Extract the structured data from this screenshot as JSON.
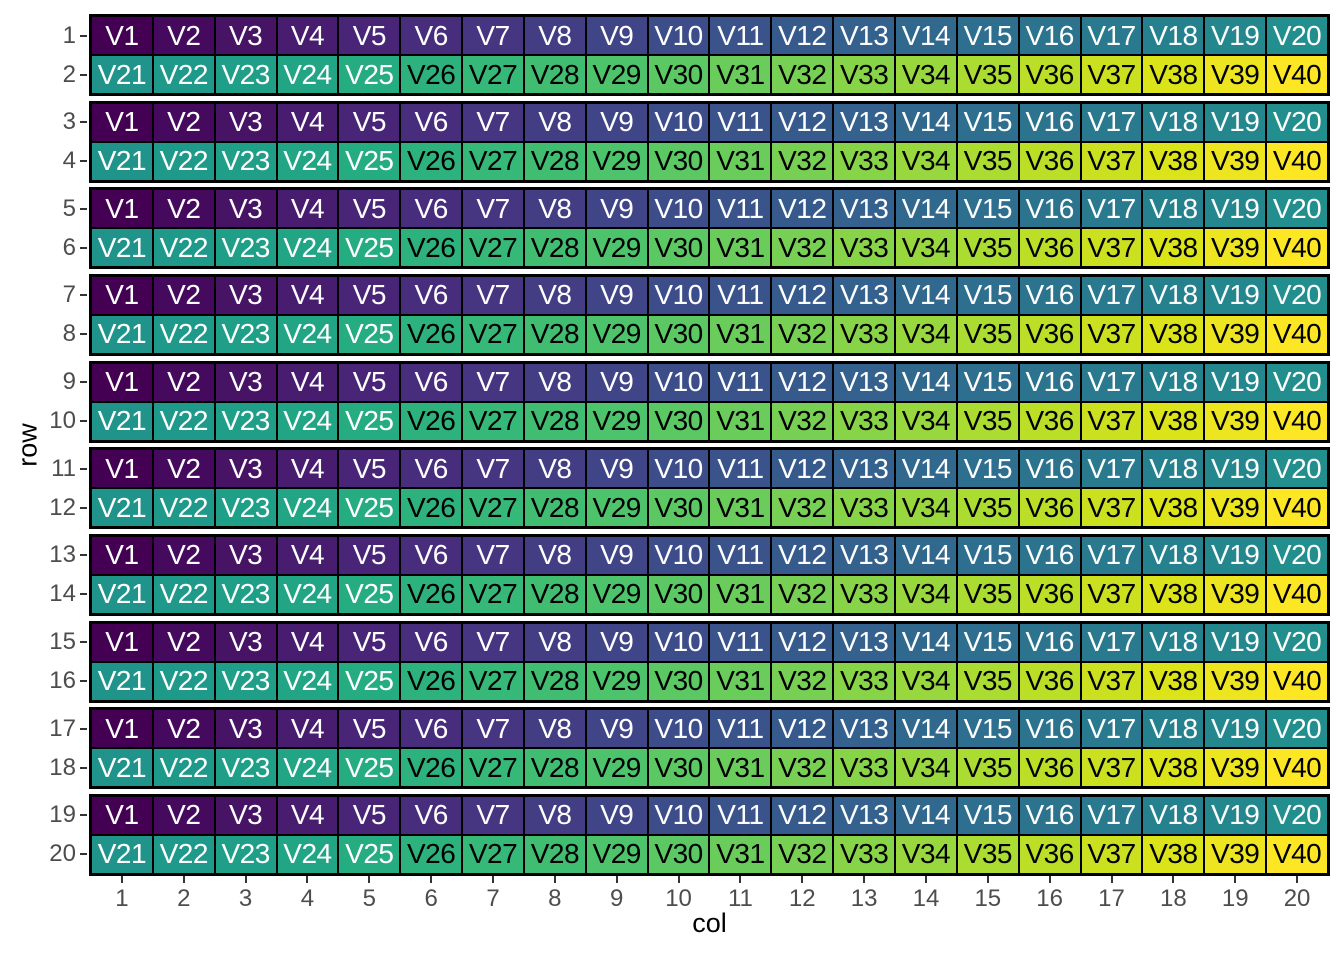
{
  "figure": {
    "background": "#FFFFFF",
    "colors": {
      "band_border": "#000000",
      "cell_border": "#000000",
      "tick_mark": "#333333",
      "tick_label": "#4D4D4D",
      "axis_title": "#000000",
      "light_text": "#FFFFFF",
      "dark_text": "#000000"
    }
  },
  "chart_data": {
    "type": "heatmap",
    "title": "",
    "xlabel": "col",
    "ylabel": "row",
    "n_rows": 20,
    "n_cols": 20,
    "x_ticks": [
      "1",
      "2",
      "3",
      "4",
      "5",
      "6",
      "7",
      "8",
      "9",
      "10",
      "11",
      "12",
      "13",
      "14",
      "15",
      "16",
      "17",
      "18",
      "19",
      "20"
    ],
    "y_ticks": [
      "1",
      "2",
      "3",
      "4",
      "5",
      "6",
      "7",
      "8",
      "9",
      "10",
      "11",
      "12",
      "13",
      "14",
      "15",
      "16",
      "17",
      "18",
      "19",
      "20"
    ],
    "odd_row_labels": [
      "V1",
      "V2",
      "V3",
      "V4",
      "V5",
      "V6",
      "V7",
      "V8",
      "V9",
      "V10",
      "V11",
      "V12",
      "V13",
      "V14",
      "V15",
      "V16",
      "V17",
      "V18",
      "V19",
      "V20"
    ],
    "even_row_labels": [
      "V21",
      "V22",
      "V23",
      "V24",
      "V25",
      "V26",
      "V27",
      "V28",
      "V29",
      "V30",
      "V31",
      "V32",
      "V33",
      "V34",
      "V35",
      "V36",
      "V37",
      "V38",
      "V39",
      "V40"
    ],
    "pattern": "Every odd row (1,3,...,19) shows tiles V1-V20 left to right; every even row (2,4,...,20) shows tiles V21-V40. Fill color = viridis((v-1)/39) for label Vv. Rows are grouped in pairs, each pair outlined by a thick black rectangle with a white gap between pairs.",
    "palette_viridis_40": [
      "#440154",
      "#450A5D",
      "#471365",
      "#481C6E",
      "#482576",
      "#472D7B",
      "#463581",
      "#433D84",
      "#404587",
      "#3D4D89",
      "#3A548B",
      "#375A8C",
      "#34618D",
      "#31688E",
      "#2E6E8E",
      "#2C748E",
      "#297A8E",
      "#26818E",
      "#24878E",
      "#228E8D",
      "#20948B",
      "#1F998A",
      "#1F9F88",
      "#21A585",
      "#26AC81",
      "#2DB27D",
      "#36B878",
      "#41BD72",
      "#4DC36B",
      "#5BC864",
      "#69CC5B",
      "#77D053",
      "#88D448",
      "#98D83E",
      "#AADC32",
      "#BBDF27",
      "#CBE120",
      "#DBE319",
      "#ECE51F",
      "#FDE725"
    ],
    "light_text_max_value": 25,
    "axis_ranges": {
      "x": [
        1,
        20
      ],
      "y": [
        1,
        20
      ]
    },
    "legend": "none",
    "grid": "off"
  }
}
